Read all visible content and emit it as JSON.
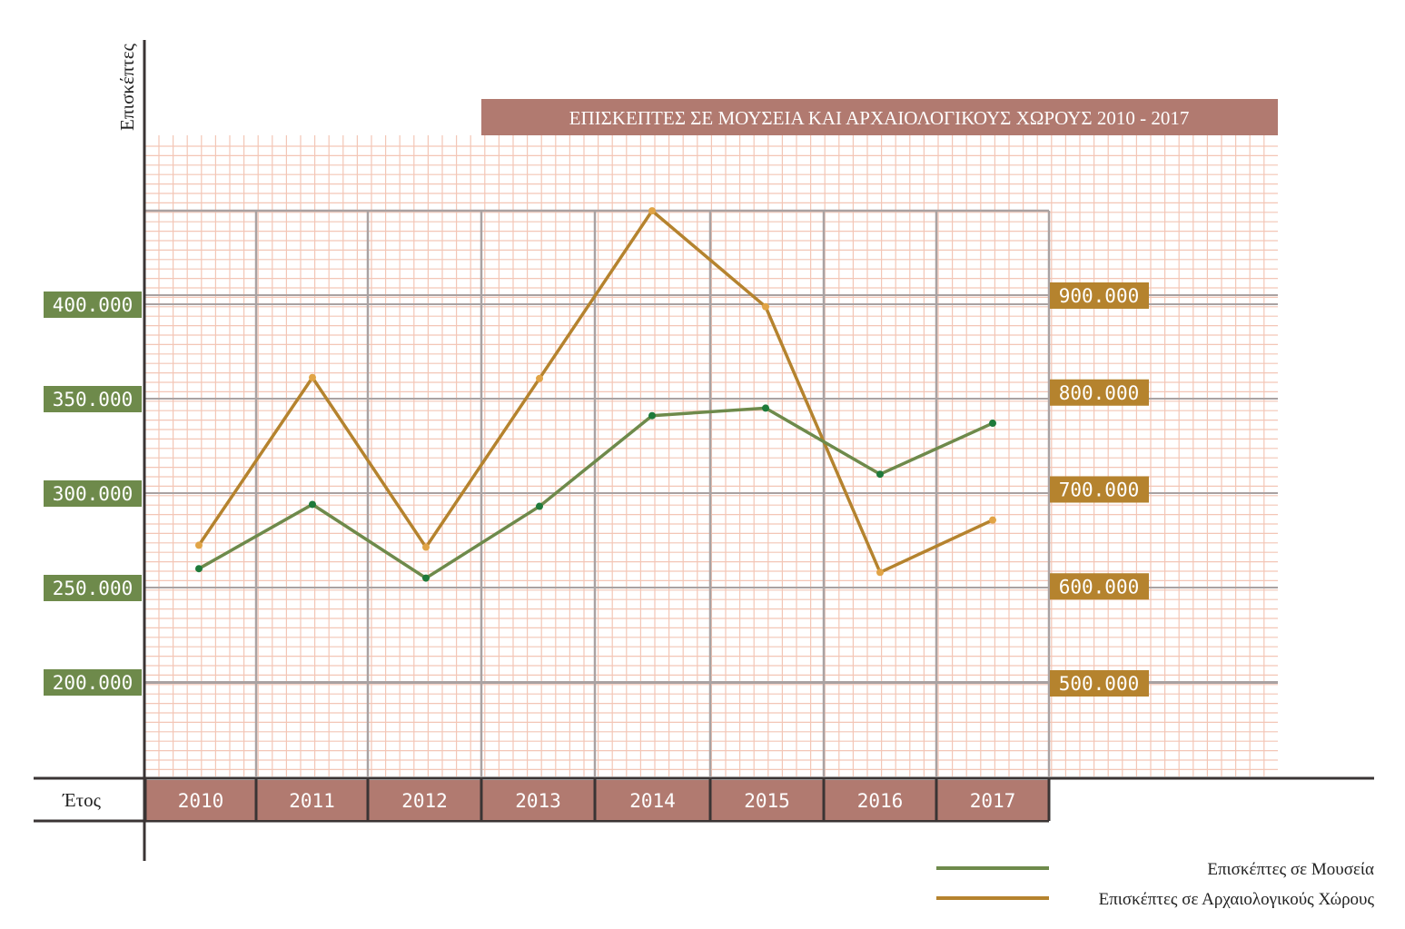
{
  "chart_data": {
    "type": "line",
    "title": "ΕΠΙΣΚΕΠΤΕΣ ΣΕ ΜΟΥΣΕΙΑ ΚΑΙ ΑΡΧΑΙΟΛΟΓΙΚΟΥΣ ΧΩΡΟΥΣ 2010 - 2017",
    "xlabel": "Έτος",
    "ylabel": "Επισκέπτες",
    "categories": [
      "2010",
      "2011",
      "2012",
      "2013",
      "2014",
      "2015",
      "2016",
      "2017"
    ],
    "y_left": {
      "ticks": [
        200000,
        250000,
        300000,
        350000,
        400000
      ],
      "tick_labels": [
        "200.000",
        "250.000",
        "300.000",
        "350.000",
        "400.000"
      ],
      "range": [
        150000,
        450000
      ]
    },
    "y_right": {
      "ticks": [
        500000,
        600000,
        700000,
        800000,
        900000
      ],
      "tick_labels": [
        "500.000",
        "600.000",
        "700.000",
        "800.000",
        "900.000"
      ],
      "range": [
        400000,
        1000000
      ]
    },
    "series": [
      {
        "name": "Επισκέπτες σε Μουσεία",
        "axis": "left",
        "color": "#6e8a4b",
        "marker_color": "#1f7a3a",
        "values": [
          260000,
          294000,
          255000,
          293000,
          341000,
          345000,
          310000,
          337000
        ]
      },
      {
        "name": "Επισκέπτες σε Αρχαιολογικούς Χώρους",
        "axis": "right",
        "color": "#b5832e",
        "marker_color": "#e1a446",
        "values": [
          642000,
          815000,
          640000,
          814000,
          987000,
          888000,
          614000,
          668000
        ]
      }
    ],
    "grid": true,
    "legend": "bottom-right"
  },
  "colors": {
    "left_badge": "#6e8a4b",
    "right_badge": "#b5832e",
    "title_band": "#b17a70",
    "year_cell": "#b17a70",
    "fine_grid": "#f3c6b6",
    "major_grid": "#a9a2a2",
    "axis": "#3a3434"
  }
}
